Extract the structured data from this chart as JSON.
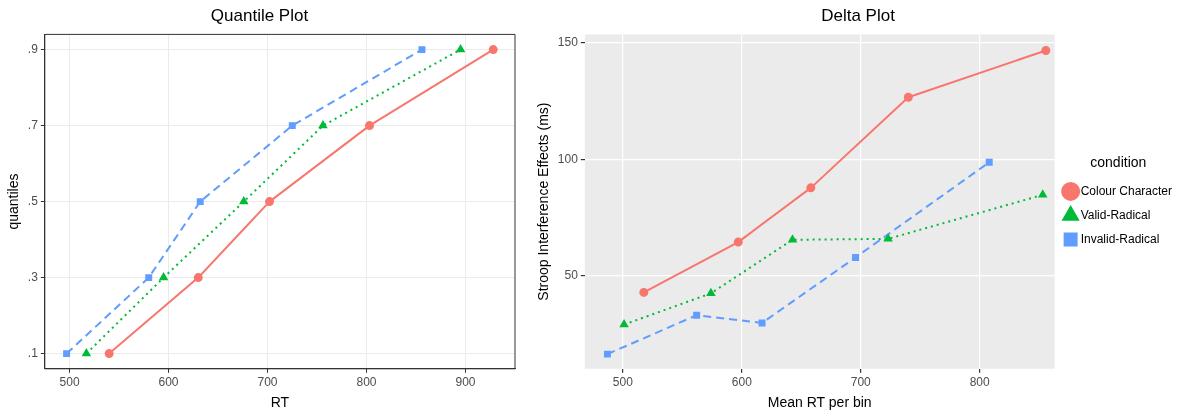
{
  "chart_data": [
    {
      "type": "line",
      "title": "Quantile Plot",
      "xlabel": "RT",
      "ylabel": "quantiles",
      "xlim": [
        475,
        950
      ],
      "xticks": [
        500,
        600,
        700,
        800,
        900
      ],
      "ylim": [
        0.06,
        0.94
      ],
      "yticks": [
        {
          "value": 0.1,
          "label": ".1"
        },
        {
          "value": 0.3,
          "label": ".3"
        },
        {
          "value": 0.5,
          "label": ".5"
        },
        {
          "value": 0.7,
          "label": ".7"
        },
        {
          "value": 0.9,
          "label": ".9"
        }
      ],
      "grid": true,
      "series": [
        {
          "color": "#f8766d",
          "marker": "circle",
          "line_style": "solid",
          "x": [
            540,
            630,
            702,
            803,
            928
          ],
          "values": [
            0.1,
            0.3,
            0.5,
            0.7,
            0.9
          ]
        },
        {
          "color": "#00ba38",
          "marker": "triangle",
          "line_style": "dotted",
          "x": [
            517,
            595,
            676,
            756,
            895
          ],
          "values": [
            0.1,
            0.3,
            0.5,
            0.7,
            0.9
          ]
        },
        {
          "color": "#619cff",
          "marker": "square",
          "line_style": "dashed",
          "x": [
            497,
            580,
            632,
            725,
            856
          ],
          "values": [
            0.1,
            0.3,
            0.5,
            0.7,
            0.9
          ]
        }
      ]
    },
    {
      "type": "line",
      "title": "Delta Plot",
      "xlabel": "Mean RT per bin",
      "ylabel": "Stroop Interference Effects (ms)",
      "xlim": [
        468,
        863
      ],
      "xticks": [
        500,
        600,
        700,
        800
      ],
      "ylim": [
        10,
        153.6
      ],
      "yticks": [
        50,
        100,
        150
      ],
      "grid": true,
      "legend": "right",
      "legend_title": "condition",
      "series": [
        {
          "name": "Colour Character",
          "color": "#f8766d",
          "marker": "circle",
          "line_style": "solid",
          "x": [
            517.6,
            597,
            658,
            740,
            855.6
          ],
          "values": [
            42.8,
            64.4,
            87.7,
            126.6,
            146.7
          ]
        },
        {
          "name": "Valid-Radical",
          "color": "#00ba38",
          "marker": "triangle",
          "line_style": "dotted",
          "x": [
            501,
            574,
            642.6,
            723,
            853
          ],
          "values": [
            29,
            42.4,
            65.4,
            65.8,
            84.7
          ]
        },
        {
          "name": "Invalid-Radical",
          "color": "#619cff",
          "marker": "square",
          "line_style": "dashed",
          "x": [
            487,
            562,
            617,
            695.6,
            808
          ],
          "values": [
            16.3,
            33,
            29.7,
            57.8,
            98.7
          ]
        }
      ]
    }
  ]
}
